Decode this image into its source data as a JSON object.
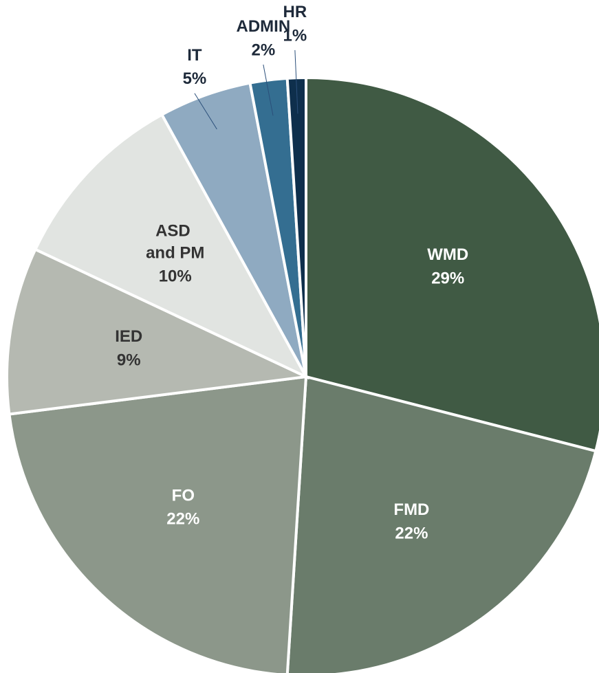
{
  "chart_data": {
    "type": "pie",
    "categories": [
      "WMD",
      "FMD",
      "FO",
      "IED",
      "ASD and PM",
      "IT",
      "ADMIN",
      "HR"
    ],
    "values": [
      29,
      22,
      22,
      9,
      10,
      5,
      2,
      1
    ],
    "value_labels": [
      "29%",
      "22%",
      "22%",
      "9%",
      "10%",
      "5%",
      "2%",
      "1%"
    ],
    "colors": [
      "#405a44",
      "#6a7c6b",
      "#8c978a",
      "#b5b9b1",
      "#e1e4e1",
      "#8faac1",
      "#346e91",
      "#0e2f4c"
    ]
  }
}
